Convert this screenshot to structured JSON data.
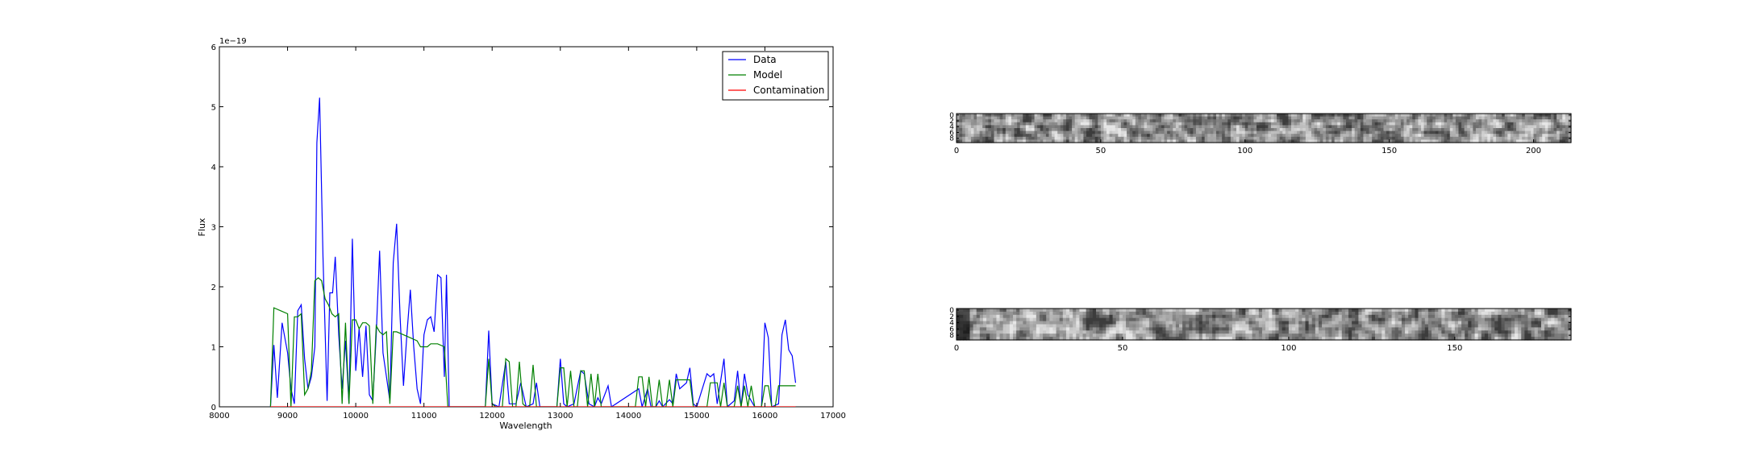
{
  "chart_data": [
    {
      "type": "line",
      "xlabel": "Wavelength",
      "ylabel": "Flux",
      "offset_label": "1e−19",
      "xlim": [
        8000,
        17000
      ],
      "ylim": [
        0,
        6
      ],
      "y_multiplier": "1e-19",
      "x_ticks": [
        8000,
        9000,
        10000,
        11000,
        12000,
        13000,
        14000,
        15000,
        16000,
        17000
      ],
      "y_ticks": [
        0,
        1,
        2,
        3,
        4,
        5,
        6
      ],
      "grid": false,
      "legend_position": "top-right",
      "series": [
        {
          "name": "Data",
          "color": "#0000ff",
          "points": [
            [
              8750,
              0
            ],
            [
              8800,
              1.03
            ],
            [
              8850,
              0.15
            ],
            [
              8920,
              1.4
            ],
            [
              9000,
              0.9
            ],
            [
              9050,
              0.3
            ],
            [
              9100,
              0.05
            ],
            [
              9150,
              1.6
            ],
            [
              9200,
              1.7
            ],
            [
              9250,
              0.8
            ],
            [
              9300,
              0.3
            ],
            [
              9350,
              0.5
            ],
            [
              9400,
              1.0
            ],
            [
              9430,
              4.4
            ],
            [
              9470,
              5.15
            ],
            [
              9520,
              2.5
            ],
            [
              9580,
              0.1
            ],
            [
              9620,
              1.9
            ],
            [
              9660,
              1.9
            ],
            [
              9700,
              2.5
            ],
            [
              9750,
              1.2
            ],
            [
              9800,
              0.3
            ],
            [
              9850,
              1.1
            ],
            [
              9900,
              0.05
            ],
            [
              9950,
              2.8
            ],
            [
              10000,
              0.6
            ],
            [
              10050,
              1.3
            ],
            [
              10100,
              0.5
            ],
            [
              10150,
              1.35
            ],
            [
              10200,
              0.2
            ],
            [
              10250,
              0.1
            ],
            [
              10300,
              1.2
            ],
            [
              10350,
              2.6
            ],
            [
              10400,
              0.9
            ],
            [
              10450,
              0.5
            ],
            [
              10500,
              0.1
            ],
            [
              10550,
              2.4
            ],
            [
              10600,
              3.05
            ],
            [
              10650,
              1.5
            ],
            [
              10700,
              0.35
            ],
            [
              10750,
              1.2
            ],
            [
              10800,
              1.95
            ],
            [
              10850,
              1.0
            ],
            [
              10900,
              0.3
            ],
            [
              10950,
              0.05
            ],
            [
              11000,
              1.2
            ],
            [
              11050,
              1.45
            ],
            [
              11100,
              1.5
            ],
            [
              11150,
              1.25
            ],
            [
              11200,
              2.2
            ],
            [
              11250,
              2.15
            ],
            [
              11300,
              0.5
            ],
            [
              11330,
              2.2
            ],
            [
              11370,
              0
            ],
            [
              11900,
              0
            ],
            [
              11950,
              1.27
            ],
            [
              12000,
              0.05
            ],
            [
              12100,
              0
            ],
            [
              12200,
              0.75
            ],
            [
              12250,
              0.05
            ],
            [
              12350,
              0.05
            ],
            [
              12420,
              0.4
            ],
            [
              12500,
              0
            ],
            [
              12600,
              0.05
            ],
            [
              12650,
              0.4
            ],
            [
              12700,
              0
            ],
            [
              12950,
              0
            ],
            [
              13000,
              0.8
            ],
            [
              13050,
              0.05
            ],
            [
              13100,
              0
            ],
            [
              13200,
              0.05
            ],
            [
              13300,
              0.6
            ],
            [
              13350,
              0.55
            ],
            [
              13420,
              0.05
            ],
            [
              13500,
              0
            ],
            [
              13550,
              0.15
            ],
            [
              13600,
              0.05
            ],
            [
              13700,
              0.35
            ],
            [
              13750,
              0
            ],
            [
              14150,
              0.3
            ],
            [
              14200,
              0
            ],
            [
              14280,
              0.3
            ],
            [
              14330,
              0
            ],
            [
              14400,
              0
            ],
            [
              14450,
              0.1
            ],
            [
              14500,
              0
            ],
            [
              14600,
              0.12
            ],
            [
              14650,
              0.05
            ],
            [
              14700,
              0.55
            ],
            [
              14750,
              0.3
            ],
            [
              14850,
              0.4
            ],
            [
              14900,
              0.65
            ],
            [
              14950,
              0.05
            ],
            [
              15000,
              0
            ],
            [
              15150,
              0.55
            ],
            [
              15200,
              0.5
            ],
            [
              15250,
              0.55
            ],
            [
              15300,
              0.05
            ],
            [
              15400,
              0.8
            ],
            [
              15450,
              0
            ],
            [
              15550,
              0.1
            ],
            [
              15600,
              0.6
            ],
            [
              15650,
              0
            ],
            [
              15700,
              0.55
            ],
            [
              15750,
              0.2
            ],
            [
              15800,
              0.1
            ],
            [
              15850,
              0
            ],
            [
              15950,
              0
            ],
            [
              16000,
              1.4
            ],
            [
              16050,
              1.15
            ],
            [
              16100,
              0
            ],
            [
              16200,
              0.05
            ],
            [
              16250,
              1.2
            ],
            [
              16300,
              1.45
            ],
            [
              16350,
              0.95
            ],
            [
              16400,
              0.85
            ],
            [
              16450,
              0.4
            ]
          ]
        },
        {
          "name": "Model",
          "color": "#008000",
          "points": [
            [
              8750,
              0
            ],
            [
              8800,
              1.65
            ],
            [
              8900,
              1.6
            ],
            [
              9000,
              1.55
            ],
            [
              9050,
              0
            ],
            [
              9100,
              1.5
            ],
            [
              9150,
              1.5
            ],
            [
              9200,
              1.55
            ],
            [
              9250,
              0.2
            ],
            [
              9300,
              0.3
            ],
            [
              9350,
              0.6
            ],
            [
              9400,
              2.1
            ],
            [
              9450,
              2.15
            ],
            [
              9500,
              2.1
            ],
            [
              9550,
              1.8
            ],
            [
              9600,
              1.7
            ],
            [
              9650,
              1.55
            ],
            [
              9700,
              1.5
            ],
            [
              9750,
              1.55
            ],
            [
              9800,
              0.05
            ],
            [
              9850,
              1.4
            ],
            [
              9900,
              0.05
            ],
            [
              9950,
              1.45
            ],
            [
              10000,
              1.45
            ],
            [
              10050,
              1.3
            ],
            [
              10100,
              1.4
            ],
            [
              10150,
              1.4
            ],
            [
              10200,
              1.35
            ],
            [
              10250,
              0.05
            ],
            [
              10300,
              1.35
            ],
            [
              10350,
              1.25
            ],
            [
              10400,
              1.2
            ],
            [
              10450,
              1.25
            ],
            [
              10500,
              0.05
            ],
            [
              10550,
              1.25
            ],
            [
              10600,
              1.25
            ],
            [
              10700,
              1.2
            ],
            [
              10800,
              1.15
            ],
            [
              10900,
              1.1
            ],
            [
              10950,
              1.0
            ],
            [
              11000,
              1.0
            ],
            [
              11050,
              1.0
            ],
            [
              11100,
              1.05
            ],
            [
              11200,
              1.05
            ],
            [
              11300,
              1.0
            ],
            [
              11350,
              0
            ],
            [
              11400,
              0
            ],
            [
              11900,
              0
            ],
            [
              11950,
              0.8
            ],
            [
              12000,
              0.05
            ],
            [
              12050,
              0
            ],
            [
              12150,
              0
            ],
            [
              12200,
              0.8
            ],
            [
              12250,
              0.75
            ],
            [
              12300,
              0
            ],
            [
              12350,
              0
            ],
            [
              12400,
              0.75
            ],
            [
              12450,
              0.05
            ],
            [
              12500,
              0
            ],
            [
              12550,
              0
            ],
            [
              12600,
              0.7
            ],
            [
              12650,
              0
            ],
            [
              12950,
              0
            ],
            [
              13000,
              0.65
            ],
            [
              13050,
              0.65
            ],
            [
              13100,
              0
            ],
            [
              13150,
              0.6
            ],
            [
              13200,
              0
            ],
            [
              13250,
              0
            ],
            [
              13300,
              0.6
            ],
            [
              13350,
              0.6
            ],
            [
              13400,
              0
            ],
            [
              13450,
              0.55
            ],
            [
              13500,
              0
            ],
            [
              13550,
              0.55
            ],
            [
              13600,
              0
            ],
            [
              14100,
              0
            ],
            [
              14150,
              0.5
            ],
            [
              14200,
              0.5
            ],
            [
              14250,
              0
            ],
            [
              14300,
              0.5
            ],
            [
              14350,
              0
            ],
            [
              14400,
              0
            ],
            [
              14450,
              0.45
            ],
            [
              14500,
              0
            ],
            [
              14550,
              0
            ],
            [
              14600,
              0.45
            ],
            [
              14650,
              0
            ],
            [
              14700,
              0.45
            ],
            [
              14800,
              0.45
            ],
            [
              14900,
              0.45
            ],
            [
              14950,
              0
            ],
            [
              15150,
              0
            ],
            [
              15200,
              0.4
            ],
            [
              15300,
              0.4
            ],
            [
              15350,
              0
            ],
            [
              15400,
              0.4
            ],
            [
              15450,
              0
            ],
            [
              15550,
              0
            ],
            [
              15600,
              0.35
            ],
            [
              15650,
              0
            ],
            [
              15700,
              0.35
            ],
            [
              15750,
              0
            ],
            [
              15800,
              0.35
            ],
            [
              15850,
              0
            ],
            [
              15950,
              0
            ],
            [
              16000,
              0.35
            ],
            [
              16050,
              0.35
            ],
            [
              16100,
              0
            ],
            [
              16150,
              0
            ],
            [
              16200,
              0.35
            ],
            [
              16300,
              0.35
            ],
            [
              16450,
              0.35
            ]
          ]
        },
        {
          "name": "Contamination",
          "color": "#ff0000",
          "points": [
            [
              8750,
              0
            ],
            [
              16450,
              0
            ]
          ]
        }
      ]
    },
    {
      "type": "heatmap",
      "xlim": [
        0,
        213
      ],
      "ylim": [
        0,
        10
      ],
      "x_ticks": [
        0,
        50,
        100,
        150,
        200
      ],
      "y_ticks": [
        0,
        2,
        4,
        6,
        8
      ],
      "colormap": "gray",
      "grid": false
    },
    {
      "type": "heatmap",
      "xlim": [
        0,
        185
      ],
      "ylim": [
        0,
        10
      ],
      "x_ticks": [
        0,
        50,
        100,
        150
      ],
      "y_ticks": [
        0,
        2,
        4,
        6,
        8
      ],
      "colormap": "gray",
      "grid": false
    }
  ]
}
